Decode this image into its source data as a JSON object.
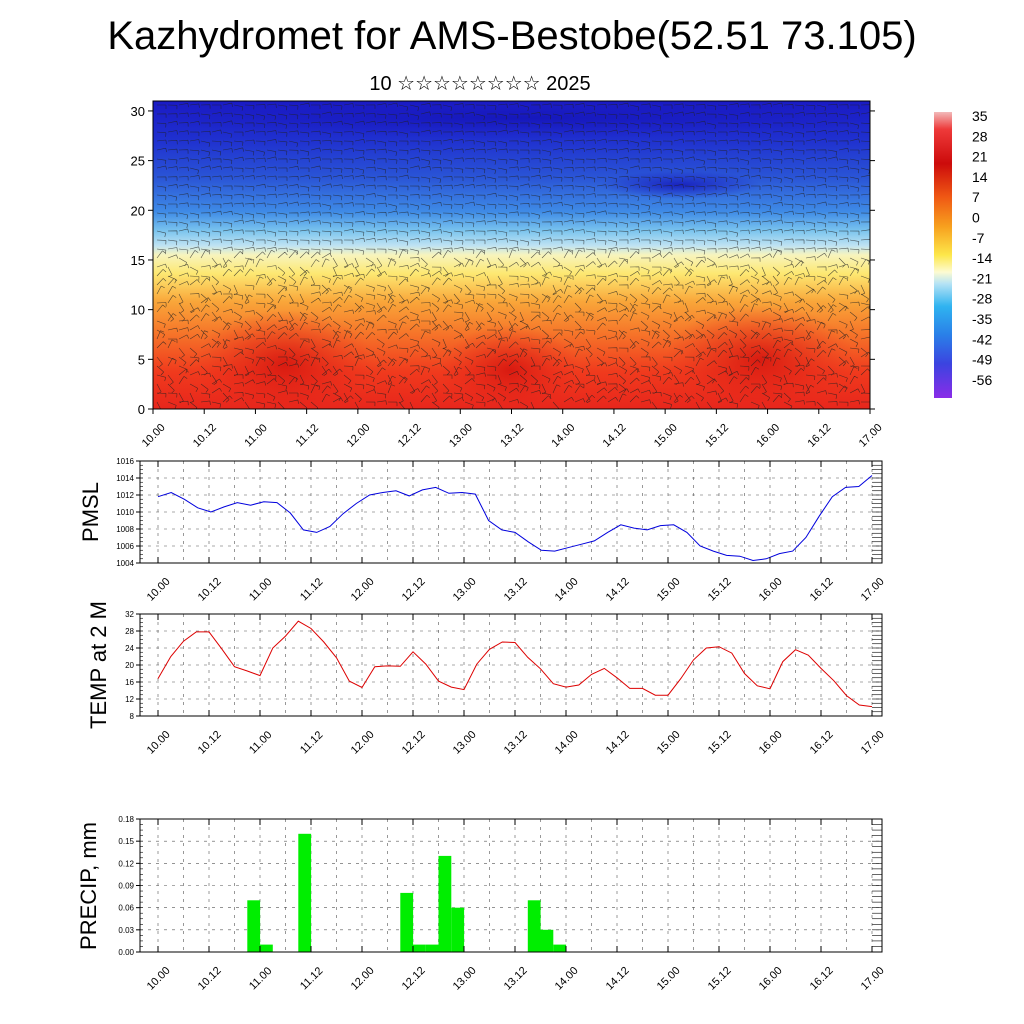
{
  "title": "Kazhydromet for AMS-Bestobe(52.51 73.105)",
  "subtitle": "10 ☆☆☆☆☆☆☆☆ 2025",
  "time_labels": [
    "10.00",
    "10.12",
    "11.00",
    "11.12",
    "12.00",
    "12.12",
    "13.00",
    "13.12",
    "14.00",
    "14.12",
    "15.00",
    "15.12",
    "16.00",
    "16.12",
    "17.00"
  ],
  "colors": {
    "pmsl_line": "#0000dd",
    "temp_line": "#dd0000",
    "precip_bar": "#00ee00",
    "grid": "#555555"
  },
  "chart_data": [
    {
      "id": "cross_section",
      "type": "heatmap",
      "ylim": [
        0,
        31
      ],
      "yticks": [
        0,
        5,
        10,
        15,
        20,
        25,
        30
      ],
      "x_ticks": [
        "10.00",
        "10.12",
        "11.00",
        "11.12",
        "12.00",
        "12.12",
        "13.00",
        "13.12",
        "14.00",
        "14.12",
        "15.00",
        "15.12",
        "16.00",
        "16.12",
        "17.00"
      ],
      "colorbar_labels": [
        "35",
        "28",
        "21",
        "14",
        "7",
        "0",
        "-7",
        "-14",
        "-21",
        "-28",
        "-35",
        "-42",
        "-49",
        "-56"
      ],
      "description": "Temperature (color) and wind barbs vs height and time"
    },
    {
      "id": "pmsl",
      "type": "line",
      "ylabel": "PMSL",
      "ylim": [
        1004,
        1016
      ],
      "yticks": [
        1004,
        1006,
        1008,
        1010,
        1012,
        1014,
        1016
      ],
      "x_ticks": [
        "10.00",
        "10.12",
        "11.00",
        "11.12",
        "12.00",
        "12.12",
        "13.00",
        "13.12",
        "14.00",
        "14.12",
        "15.00",
        "15.12",
        "16.00",
        "16.12",
        "17.00"
      ],
      "values": [
        1011.8,
        1012.3,
        1011.5,
        1010.5,
        1010.0,
        1010.6,
        1011.1,
        1010.8,
        1011.2,
        1011.1,
        1009.9,
        1007.9,
        1007.6,
        1008.3,
        1009.8,
        1011.0,
        1012.0,
        1012.3,
        1012.5,
        1011.9,
        1012.6,
        1012.9,
        1012.2,
        1012.3,
        1012.1,
        1009.0,
        1007.9,
        1007.6,
        1006.5,
        1005.5,
        1005.4,
        1005.8,
        1006.2,
        1006.6,
        1007.6,
        1008.5,
        1008.1,
        1007.9,
        1008.4,
        1008.5,
        1007.6,
        1006.0,
        1005.4,
        1004.9,
        1004.8,
        1004.3,
        1004.5,
        1005.1,
        1005.4,
        1007.0,
        1009.5,
        1011.8,
        1012.9,
        1013.0,
        1014.3
      ]
    },
    {
      "id": "temp2m",
      "type": "line",
      "ylabel": "TEMP at 2 M",
      "ylim": [
        8,
        32
      ],
      "yticks": [
        8,
        12,
        16,
        20,
        24,
        28,
        32
      ],
      "x_ticks": [
        "10.00",
        "10.12",
        "11.00",
        "11.12",
        "12.00",
        "12.12",
        "13.00",
        "13.12",
        "14.00",
        "14.12",
        "15.00",
        "15.12",
        "16.00",
        "16.12",
        "17.00"
      ],
      "values": [
        16.8,
        22.0,
        25.6,
        27.8,
        27.8,
        23.8,
        19.6,
        18.6,
        17.5,
        24.0,
        26.8,
        30.3,
        28.6,
        25.4,
        21.7,
        16.2,
        14.7,
        19.6,
        19.8,
        19.7,
        23.1,
        20.2,
        16.2,
        14.8,
        14.2,
        20.2,
        23.7,
        25.4,
        25.3,
        21.8,
        19.1,
        15.6,
        14.8,
        15.3,
        17.8,
        19.2,
        17.0,
        14.5,
        14.5,
        12.9,
        12.9,
        16.8,
        21.2,
        24.0,
        24.3,
        22.8,
        18.0,
        15.1,
        14.4,
        20.8,
        23.6,
        22.3,
        19.2,
        16.3,
        12.8,
        10.6,
        10.2
      ]
    },
    {
      "id": "precip",
      "type": "bar",
      "ylabel": "PRECIP, mm",
      "ylim": [
        0,
        0.18
      ],
      "yticks": [
        "0.00",
        "0.03",
        "0.06",
        "0.09",
        "0.12",
        "0.15",
        "0.18"
      ],
      "x_ticks": [
        "10.00",
        "10.12",
        "11.00",
        "11.12",
        "12.00",
        "12.12",
        "13.00",
        "13.12",
        "14.00",
        "14.12",
        "15.00",
        "15.12",
        "16.00",
        "16.12",
        "17.00"
      ],
      "bars": [
        {
          "t": 21,
          "value": 0.07
        },
        {
          "t": 24,
          "value": 0.01
        },
        {
          "t": 33,
          "value": 0.16
        },
        {
          "t": 57,
          "value": 0.08
        },
        {
          "t": 60,
          "value": 0.01
        },
        {
          "t": 63,
          "value": 0.01
        },
        {
          "t": 66,
          "value": 0.13
        },
        {
          "t": 69,
          "value": 0.06
        },
        {
          "t": 87,
          "value": 0.07
        },
        {
          "t": 90,
          "value": 0.03
        },
        {
          "t": 93,
          "value": 0.01
        }
      ]
    }
  ]
}
